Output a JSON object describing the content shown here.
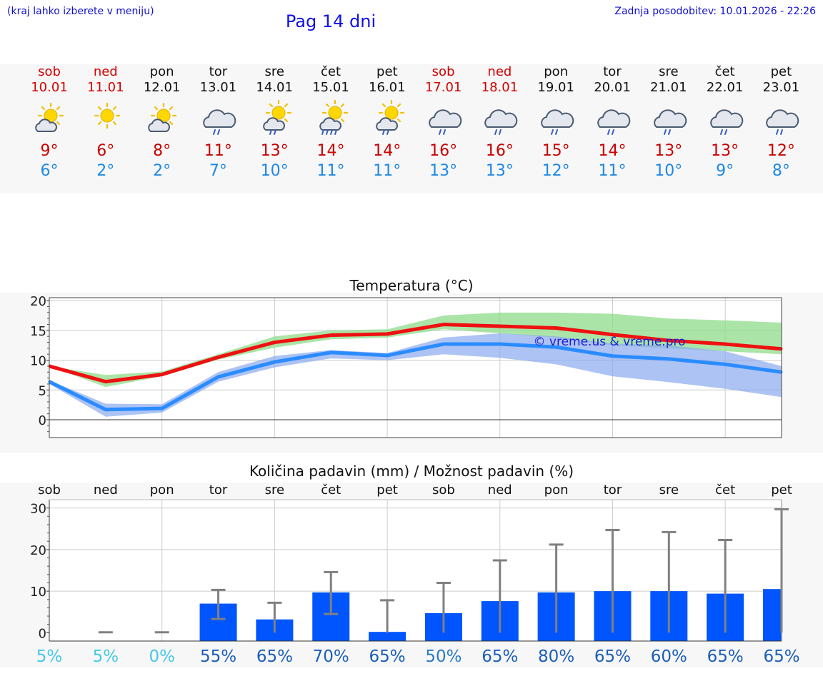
{
  "header": {
    "menu_hint": "(kraj lahko izberete v meniju)",
    "title": "Pag 14 dni",
    "updated": "Zadnja posodobitev: 10.01.2026 - 22:26"
  },
  "days": [
    {
      "name": "sob",
      "date": "10.01",
      "weekend": true,
      "icon": "sun-cloud-icon",
      "max": "9°",
      "min": "6°"
    },
    {
      "name": "ned",
      "date": "11.01",
      "weekend": true,
      "icon": "sun-icon",
      "max": "6°",
      "min": "2°"
    },
    {
      "name": "pon",
      "date": "12.01",
      "weekend": false,
      "icon": "sun-cloud-icon",
      "max": "8°",
      "min": "2°"
    },
    {
      "name": "tor",
      "date": "13.01",
      "weekend": false,
      "icon": "cloud-rain-icon",
      "max": "11°",
      "min": "7°"
    },
    {
      "name": "sre",
      "date": "14.01",
      "weekend": false,
      "icon": "sun-cloud-rain-icon",
      "max": "13°",
      "min": "10°"
    },
    {
      "name": "čet",
      "date": "15.01",
      "weekend": false,
      "icon": "sun-cloud-heavy-rain-icon",
      "max": "14°",
      "min": "11°"
    },
    {
      "name": "pet",
      "date": "16.01",
      "weekend": false,
      "icon": "sun-cloud-rain-icon",
      "max": "14°",
      "min": "11°"
    },
    {
      "name": "sob",
      "date": "17.01",
      "weekend": true,
      "icon": "cloud-rain-icon",
      "max": "16°",
      "min": "13°"
    },
    {
      "name": "ned",
      "date": "18.01",
      "weekend": true,
      "icon": "cloud-rain-icon",
      "max": "16°",
      "min": "13°"
    },
    {
      "name": "pon",
      "date": "19.01",
      "weekend": false,
      "icon": "cloud-rain-icon",
      "max": "15°",
      "min": "12°"
    },
    {
      "name": "tor",
      "date": "20.01",
      "weekend": false,
      "icon": "cloud-rain-icon",
      "max": "14°",
      "min": "11°"
    },
    {
      "name": "sre",
      "date": "21.01",
      "weekend": false,
      "icon": "cloud-rain-icon",
      "max": "13°",
      "min": "10°"
    },
    {
      "name": "čet",
      "date": "22.01",
      "weekend": false,
      "icon": "cloud-rain-icon",
      "max": "13°",
      "min": "9°"
    },
    {
      "name": "pet",
      "date": "23.01",
      "weekend": false,
      "icon": "cloud-rain-icon",
      "max": "12°",
      "min": "8°"
    }
  ],
  "colors": {
    "max_line": "#ee1111",
    "min_line": "#2a8cff",
    "max_band": "#8edc8a",
    "min_band": "#8aaaf0",
    "bar": "#0055ff",
    "whisker": "#808080",
    "weekend": "#d40000",
    "chance_low": "#44c8e8",
    "chance_mid": "#2a7ac8",
    "chance_high": "#1a5eb8"
  },
  "chart_data": [
    {
      "type": "line",
      "title": "Temperatura (°C)",
      "watermark": "© vreme.us & vreme.pro",
      "categories": [
        "10.01",
        "11.01",
        "12.01",
        "13.01",
        "14.01",
        "15.01",
        "16.01",
        "17.01",
        "18.01",
        "19.01",
        "20.01",
        "21.01",
        "22.01",
        "23.01"
      ],
      "ylim": [
        -3,
        20.5
      ],
      "yticks": [
        0,
        5,
        10,
        15,
        20
      ],
      "series": [
        {
          "name": "max",
          "values": [
            9,
            6.4,
            7.6,
            10.5,
            13,
            14.2,
            14.4,
            16,
            15.7,
            15.4,
            14.3,
            13.3,
            12.7,
            11.9
          ],
          "band_low": [
            9,
            5.5,
            7.3,
            10.1,
            12.1,
            13.5,
            13.8,
            15.2,
            14.5,
            13.8,
            12.5,
            12,
            11.5,
            11
          ],
          "band_high": [
            9,
            7.5,
            8.1,
            11,
            14,
            15,
            15.2,
            17.5,
            18,
            18,
            17.8,
            17,
            16.7,
            16.3
          ]
        },
        {
          "name": "min",
          "values": [
            6.4,
            1.7,
            1.9,
            7.2,
            9.7,
            11.3,
            10.8,
            12.7,
            12.7,
            12.2,
            10.7,
            10.2,
            9.3,
            8
          ],
          "band_low": [
            6,
            0.5,
            1.2,
            6.4,
            8.8,
            10.3,
            10,
            11,
            10.4,
            9.3,
            7.3,
            6.3,
            5.2,
            3.8
          ],
          "band_high": [
            6.6,
            2.7,
            2.6,
            8,
            10.7,
            11.7,
            11.2,
            13.8,
            14.5,
            14,
            12.8,
            12.5,
            11.5,
            9
          ]
        }
      ]
    },
    {
      "type": "bar",
      "title": "Količina padavin (mm) / Možnost padavin (%)",
      "categories": [
        "sob",
        "ned",
        "pon",
        "tor",
        "sre",
        "čet",
        "pet",
        "sob",
        "ned",
        "pon",
        "tor",
        "sre",
        "čet",
        "pet"
      ],
      "ylim": [
        -2,
        32
      ],
      "yticks": [
        0,
        10,
        20,
        30
      ],
      "values": [
        0,
        0,
        0,
        7,
        3.2,
        9.7,
        0.2,
        4.7,
        7.6,
        9.7,
        10,
        10,
        9.4,
        10.5
      ],
      "err_low": [
        0,
        0,
        0,
        3.3,
        0,
        4.5,
        0,
        0,
        0,
        0,
        0,
        0,
        0,
        0
      ],
      "err_high": [
        0,
        0.1,
        0.1,
        10.3,
        7.2,
        14.6,
        7.8,
        12,
        17.4,
        21.2,
        24.7,
        24.2,
        22.3,
        29.7
      ],
      "chance": [
        "5%",
        "5%",
        "0%",
        "55%",
        "65%",
        "70%",
        "65%",
        "50%",
        "65%",
        "80%",
        "65%",
        "60%",
        "65%",
        "65%"
      ]
    }
  ]
}
